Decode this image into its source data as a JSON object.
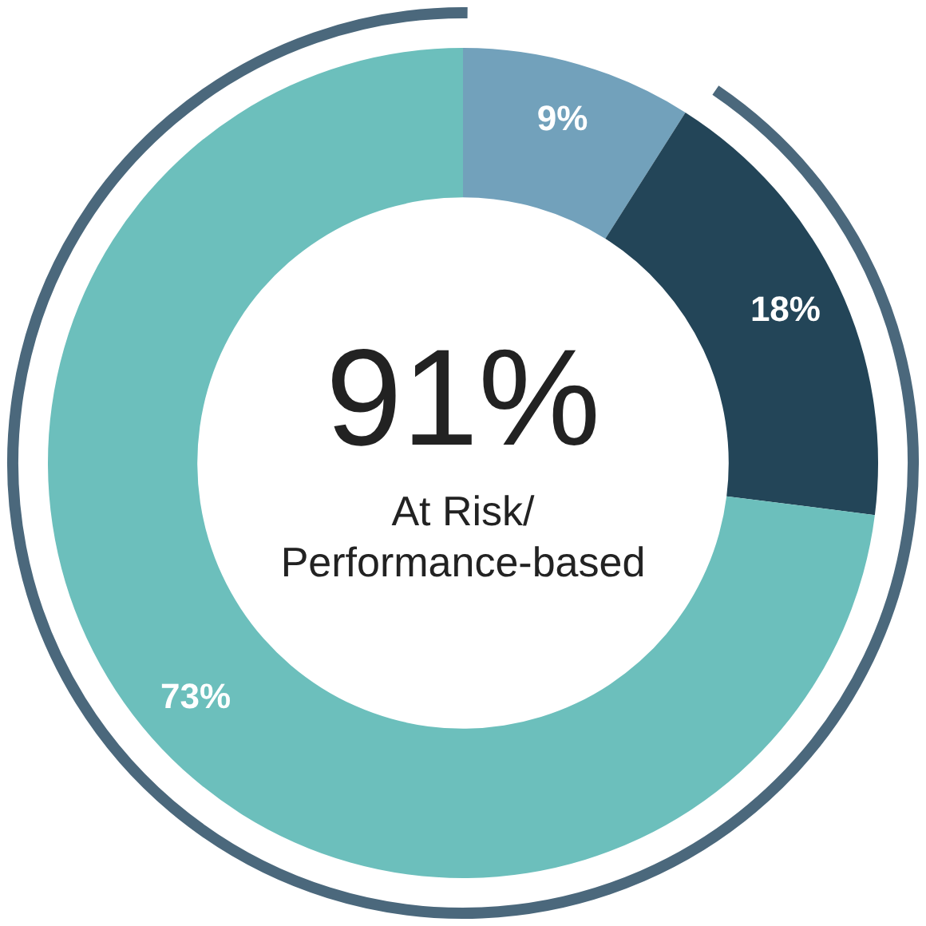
{
  "chart_data": {
    "type": "donut",
    "categories": [
      null,
      null,
      null
    ],
    "values": [
      9,
      18,
      73
    ],
    "colors": [
      "#72a1bb",
      "#234558",
      "#6cbfbc"
    ],
    "data_labels": true,
    "value_labels": [
      "9%",
      "18%",
      "73%"
    ],
    "annotations": [
      "91%",
      "At Risk/",
      "Performance-based"
    ]
  }
}
